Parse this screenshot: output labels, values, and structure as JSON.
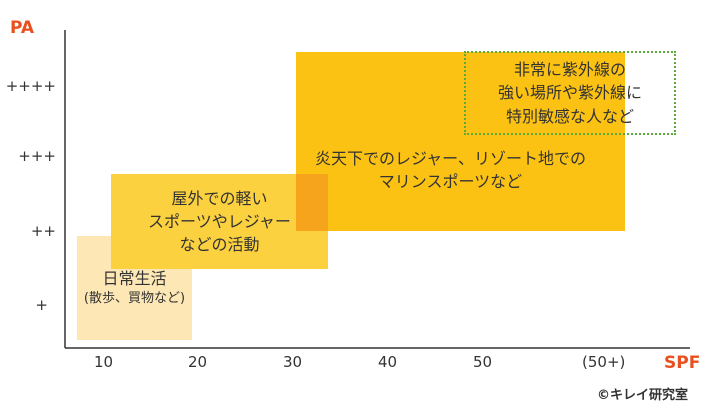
{
  "axes": {
    "y_title": "PA",
    "x_title": "SPF",
    "y_ticks": [
      "++++",
      "+++",
      "++",
      "+"
    ],
    "x_ticks": [
      "10",
      "20",
      "30",
      "40",
      "50",
      "(50+)"
    ]
  },
  "regions": {
    "daily": {
      "line1": "日常生活",
      "line2": "(散歩、買物など)"
    },
    "outdoor": {
      "line1": "屋外での軽い",
      "line2": "スポーツやレジャー",
      "line3": "などの活動"
    },
    "hot": {
      "line1": "炎天下でのレジャー、リゾート地での",
      "line2": "マリンスポーツなど"
    },
    "sensitive": {
      "line1": "非常に紫外線の",
      "line2": "強い場所や紫外線に",
      "line3": "特別敏感な人など"
    }
  },
  "colors": {
    "accent": "#e8501f",
    "daily_fill": "#fde7b5",
    "outdoor_fill": "#fcd13f",
    "hot_fill": "#fcc213",
    "overlap_fill": "#f6a41c",
    "dotted_border": "#5aaa3c"
  },
  "copyright": "©キレイ研究室"
}
